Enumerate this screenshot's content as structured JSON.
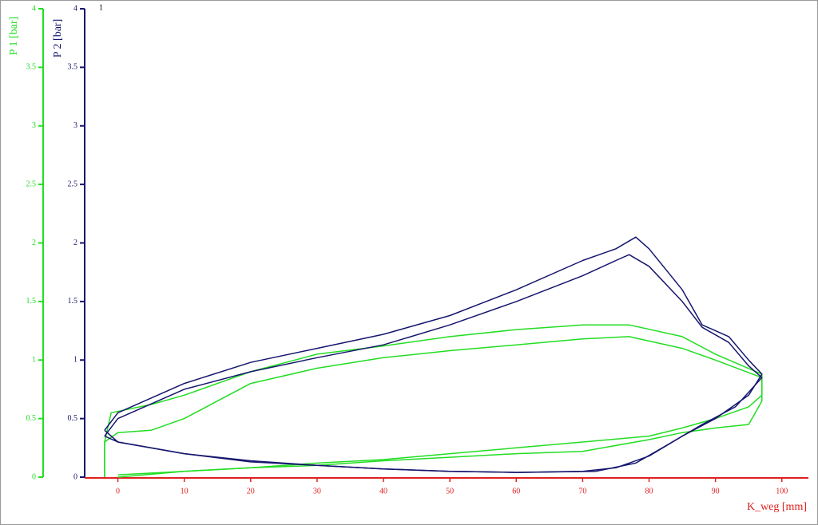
{
  "chart_data": {
    "type": "line",
    "annotation": "1",
    "xlabel": "K_weg [mm]",
    "ylabel": "P 1 [bar]",
    "y2label": "P 2 [bar]",
    "xlim": [
      -5,
      104
    ],
    "xticks": [
      0,
      10,
      20,
      30,
      40,
      50,
      60,
      70,
      80,
      90,
      100
    ],
    "ylim": [
      0,
      4
    ],
    "yticks": [
      0,
      0.5,
      1,
      1.5,
      2,
      2.5,
      3,
      3.5,
      4
    ],
    "y2lim": [
      0,
      4
    ],
    "y2ticks": [
      0,
      0.5,
      1,
      1.5,
      2,
      2.5,
      3,
      3.5,
      4
    ],
    "xcolor": "#e02020",
    "ycolor": "#22dd22",
    "y2color": "#16166e",
    "series": [
      {
        "color": "#22dd22",
        "axis": "y",
        "x": [
          -2,
          -2,
          -1,
          5,
          10,
          15,
          20,
          30,
          40,
          50,
          60,
          70,
          77,
          85,
          90,
          97,
          97,
          95,
          90,
          85,
          80,
          70,
          60,
          50,
          40,
          30,
          20,
          10,
          0
        ],
        "values": [
          0,
          0.3,
          0.55,
          0.62,
          0.7,
          0.8,
          0.9,
          1.05,
          1.12,
          1.2,
          1.26,
          1.3,
          1.3,
          1.2,
          1.05,
          0.88,
          0.7,
          0.6,
          0.5,
          0.42,
          0.35,
          0.3,
          0.25,
          0.2,
          0.15,
          0.12,
          0.08,
          0.05,
          0
        ]
      },
      {
        "color": "#22dd22",
        "axis": "y",
        "x": [
          -2,
          -2,
          0,
          5,
          10,
          15,
          20,
          30,
          40,
          50,
          60,
          70,
          77,
          85,
          90,
          97,
          97,
          95,
          90,
          85,
          80,
          70,
          60,
          50,
          40,
          30,
          20,
          10,
          0
        ],
        "values": [
          0,
          0.3,
          0.38,
          0.4,
          0.5,
          0.65,
          0.8,
          0.93,
          1.02,
          1.08,
          1.13,
          1.18,
          1.2,
          1.1,
          1.0,
          0.85,
          0.65,
          0.45,
          0.42,
          0.38,
          0.32,
          0.22,
          0.2,
          0.17,
          0.14,
          0.1,
          0.08,
          0.05,
          0.02
        ]
      },
      {
        "color": "#16166e",
        "axis": "y2",
        "x": [
          -2,
          0,
          10,
          20,
          30,
          40,
          50,
          60,
          70,
          75,
          78,
          80,
          85,
          88,
          92,
          95,
          97,
          95,
          90,
          85,
          80,
          75,
          70,
          60,
          50,
          40,
          30,
          20,
          10,
          0,
          -2
        ],
        "values": [
          0.4,
          0.55,
          0.8,
          0.98,
          1.1,
          1.22,
          1.38,
          1.6,
          1.85,
          1.95,
          2.05,
          1.95,
          1.6,
          1.3,
          1.2,
          1.0,
          0.88,
          0.7,
          0.5,
          0.35,
          0.18,
          0.08,
          0.05,
          0.04,
          0.05,
          0.07,
          0.1,
          0.13,
          0.2,
          0.3,
          0.4
        ]
      },
      {
        "color": "#16166e",
        "axis": "y2",
        "x": [
          -2,
          0,
          10,
          20,
          30,
          40,
          50,
          60,
          70,
          75,
          77,
          80,
          85,
          88,
          92,
          95,
          97,
          93,
          88,
          82,
          78,
          72,
          60,
          50,
          40,
          30,
          20,
          10,
          0,
          -2
        ],
        "values": [
          0.35,
          0.5,
          0.75,
          0.9,
          1.02,
          1.13,
          1.3,
          1.5,
          1.72,
          1.85,
          1.9,
          1.8,
          1.5,
          1.28,
          1.15,
          0.95,
          0.85,
          0.6,
          0.45,
          0.25,
          0.12,
          0.05,
          0.04,
          0.05,
          0.07,
          0.1,
          0.14,
          0.2,
          0.3,
          0.35
        ]
      }
    ]
  }
}
